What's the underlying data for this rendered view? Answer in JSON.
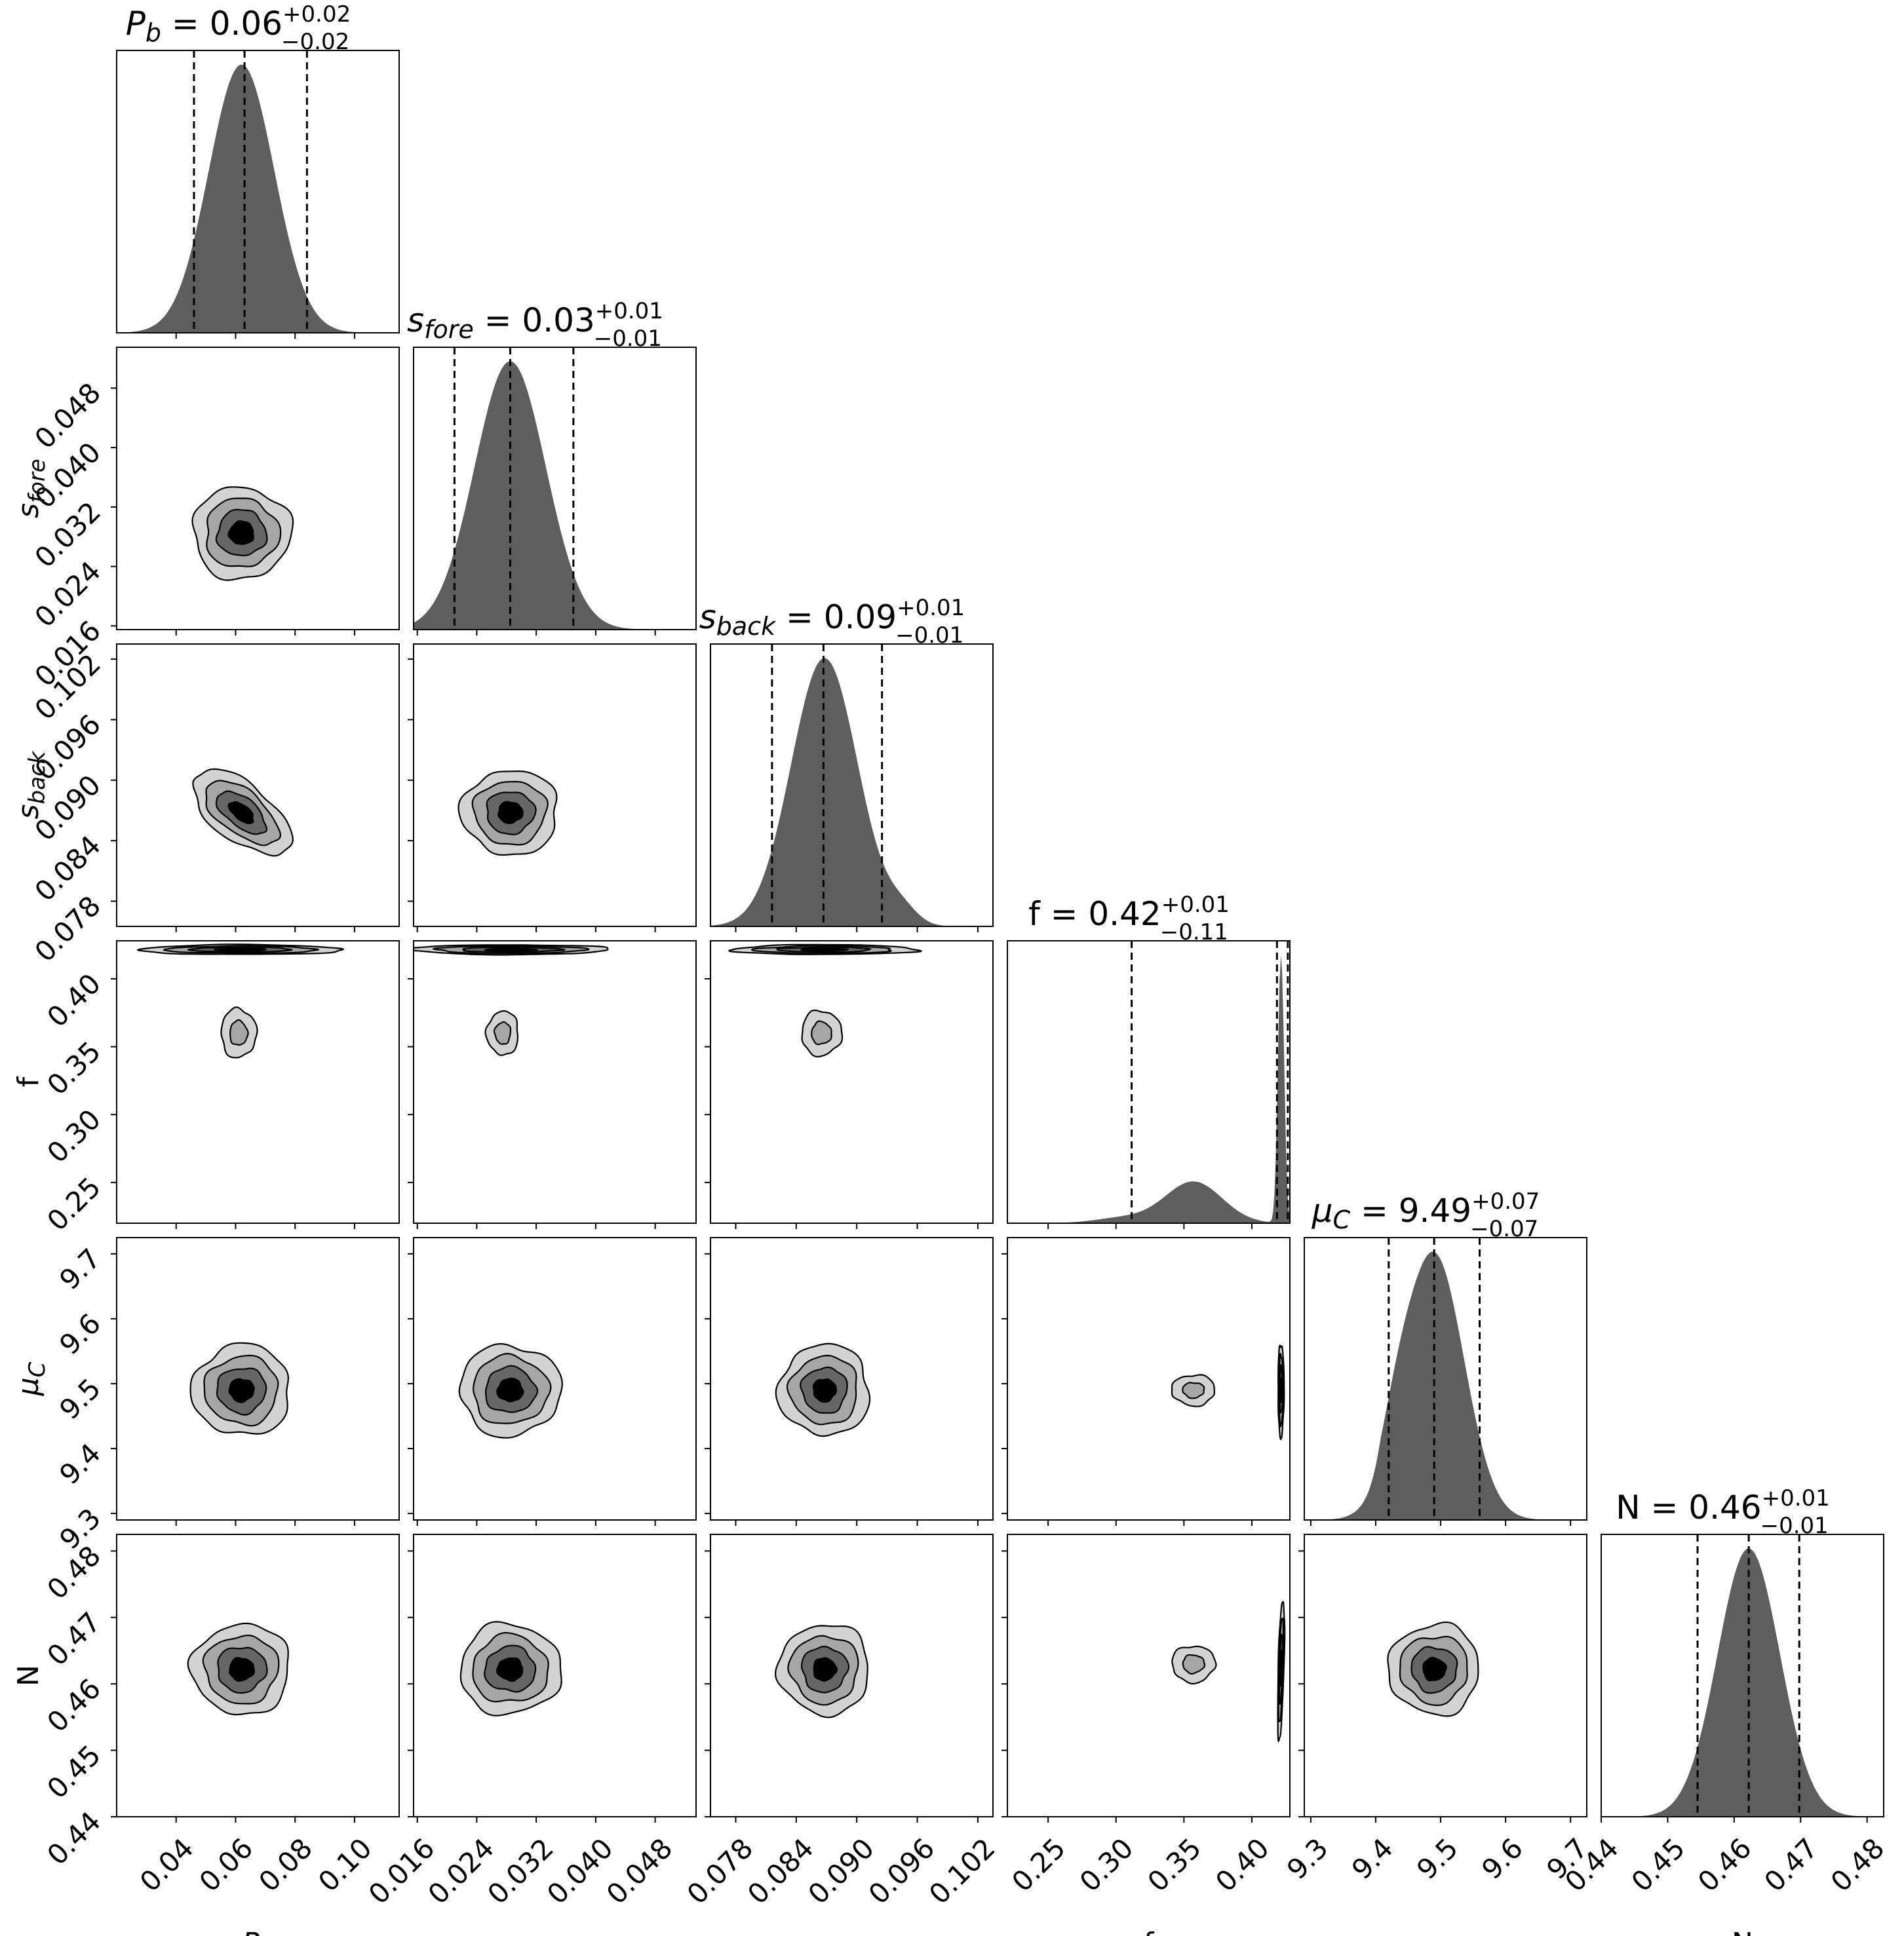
{
  "chart_data": {
    "type": "corner",
    "description": "Corner plot of 1D marginal histograms (diagonal) and 2D credible-region contours (lower triangle)",
    "colors": {
      "histogram": "#5e5e5e",
      "contour_levels": [
        "#d3d3d3",
        "#a6a6a6",
        "#666666",
        "#000000"
      ],
      "lines": "#000000",
      "background": "#ffffff"
    },
    "parameters": [
      {
        "key": "Pb",
        "label": "P_b",
        "label_main": "P",
        "label_sub": "b",
        "range": [
          0.02,
          0.115
        ],
        "ticks": [
          "0.04",
          "0.06",
          "0.08",
          "0.10"
        ],
        "tick_values": [
          0.04,
          0.06,
          0.08,
          0.1
        ],
        "title": {
          "prefix": "= ",
          "value": "0.06",
          "upper": "+0.02",
          "lower": "−0.02"
        },
        "quantiles": [
          0.046,
          0.063,
          0.084
        ],
        "posterior": {
          "mean": 0.062,
          "sd": 0.011
        }
      },
      {
        "key": "sfore",
        "label": "s_fore",
        "label_main": "s",
        "label_sub": "fore",
        "range": [
          0.0155,
          0.0535
        ],
        "ticks": [
          "0.016",
          "0.024",
          "0.032",
          "0.040",
          "0.048"
        ],
        "tick_values": [
          0.016,
          0.024,
          0.032,
          0.04,
          0.048
        ],
        "title": {
          "prefix": "= ",
          "value": "0.03",
          "upper": "+0.01",
          "lower": "−0.01"
        },
        "quantiles": [
          0.021,
          0.0285,
          0.037
        ],
        "posterior": {
          "mean": 0.0285,
          "sd": 0.0048
        }
      },
      {
        "key": "sback",
        "label": "s_back",
        "label_main": "s",
        "label_sub": "back",
        "range": [
          0.0755,
          0.1035
        ],
        "ticks": [
          "0.078",
          "0.084",
          "0.090",
          "0.096",
          "0.102"
        ],
        "tick_values": [
          0.078,
          0.084,
          0.09,
          0.096,
          0.102
        ],
        "title": {
          "prefix": "= ",
          "value": "0.09",
          "upper": "+0.01",
          "lower": "−0.01"
        },
        "quantiles": [
          0.0816,
          0.0867,
          0.0925
        ],
        "posterior": {
          "mean": 0.0868,
          "sd": 0.0033
        }
      },
      {
        "key": "f",
        "label": "f",
        "label_main": "f",
        "label_sub": "",
        "range": [
          0.22,
          0.428
        ],
        "ticks": [
          "0.25",
          "0.30",
          "0.35",
          "0.40"
        ],
        "tick_values": [
          0.25,
          0.3,
          0.35,
          0.4
        ],
        "title": {
          "prefix": "f = ",
          "value": "0.42",
          "upper": "+0.01",
          "lower": "−0.11"
        },
        "quantiles": [
          0.3115,
          0.4185,
          0.4265
        ],
        "posterior": {
          "mode_main": 0.4215,
          "mode_secondary": 0.357
        }
      },
      {
        "key": "muC",
        "label": "μ_C",
        "label_main": "μ",
        "label_sub": "C",
        "range": [
          9.29,
          9.725
        ],
        "ticks": [
          "9.3",
          "9.4",
          "9.5",
          "9.6",
          "9.7"
        ],
        "tick_values": [
          9.3,
          9.4,
          9.5,
          9.6,
          9.7
        ],
        "title": {
          "prefix": "= ",
          "value": "9.49",
          "upper": "+0.07",
          "lower": "−0.07"
        },
        "quantiles": [
          9.42,
          9.49,
          9.56
        ],
        "posterior": {
          "mean": 9.49,
          "sd": 0.046
        }
      },
      {
        "key": "N",
        "label": "N",
        "label_main": "N",
        "label_sub": "",
        "range": [
          0.44,
          0.4825
        ],
        "ticks": [
          "0.44",
          "0.45",
          "0.46",
          "0.47",
          "0.48"
        ],
        "tick_values": [
          0.44,
          0.45,
          0.46,
          0.47,
          0.48
        ],
        "title": {
          "prefix": "N = ",
          "value": "0.46",
          "upper": "+0.01",
          "lower": "−0.01"
        },
        "quantiles": [
          0.4545,
          0.4622,
          0.4698
        ],
        "posterior": {
          "mean": 0.4622,
          "sd": 0.0047
        }
      }
    ],
    "joint_regions": [
      {
        "x": "Pb",
        "y": "sfore",
        "center": [
          0.062,
          0.0285
        ],
        "spread": [
          0.0165,
          0.0062
        ],
        "rho": 0.0
      },
      {
        "x": "Pb",
        "y": "sback",
        "center": [
          0.062,
          0.0868
        ],
        "spread": [
          0.0165,
          0.0042
        ],
        "rho": -0.6
      },
      {
        "x": "sfore",
        "y": "sback",
        "center": [
          0.0285,
          0.0868
        ],
        "spread": [
          0.0065,
          0.0042
        ],
        "rho": 0.0
      },
      {
        "x": "Pb",
        "y": "f",
        "center": [
          0.062,
          0.4215
        ],
        "spread": [
          0.034,
          0.0036
        ],
        "rho": 0.0
      },
      {
        "x": "Pb",
        "y": "f",
        "center": [
          0.061,
          0.36
        ],
        "spread": [
          0.0125,
          0.038
        ],
        "rho": 0.0,
        "secondary": true
      },
      {
        "x": "sfore",
        "y": "f",
        "center": [
          0.0285,
          0.4215
        ],
        "spread": [
          0.0135,
          0.0036
        ],
        "rho": 0.0
      },
      {
        "x": "sfore",
        "y": "f",
        "center": [
          0.0275,
          0.36
        ],
        "spread": [
          0.0045,
          0.034
        ],
        "rho": 0.0,
        "secondary": true
      },
      {
        "x": "sback",
        "y": "f",
        "center": [
          0.0868,
          0.4215
        ],
        "spread": [
          0.0092,
          0.0036
        ],
        "rho": 0.0
      },
      {
        "x": "sback",
        "y": "f",
        "center": [
          0.0865,
          0.36
        ],
        "spread": [
          0.0042,
          0.035
        ],
        "rho": 0.0,
        "secondary": true
      },
      {
        "x": "Pb",
        "y": "muC",
        "center": [
          0.062,
          9.49
        ],
        "spread": [
          0.0165,
          0.07
        ],
        "rho": 0.0
      },
      {
        "x": "sfore",
        "y": "muC",
        "center": [
          0.0285,
          9.49
        ],
        "spread": [
          0.0068,
          0.07
        ],
        "rho": 0.0
      },
      {
        "x": "sback",
        "y": "muC",
        "center": [
          0.0868,
          9.49
        ],
        "spread": [
          0.0045,
          0.07
        ],
        "rho": 0.0
      },
      {
        "x": "f",
        "y": "muC",
        "center": [
          0.4215,
          9.49
        ],
        "spread": [
          0.0022,
          0.072
        ],
        "rho": 0.0
      },
      {
        "x": "f",
        "y": "muC",
        "center": [
          0.357,
          9.49
        ],
        "spread": [
          0.0335,
          0.05
        ],
        "rho": 0.0,
        "secondary": true
      },
      {
        "x": "Pb",
        "y": "N",
        "center": [
          0.062,
          0.4622
        ],
        "spread": [
          0.0165,
          0.0068
        ],
        "rho": 0.0
      },
      {
        "x": "sfore",
        "y": "N",
        "center": [
          0.0285,
          0.4622
        ],
        "spread": [
          0.0068,
          0.0068
        ],
        "rho": 0.0
      },
      {
        "x": "sback",
        "y": "N",
        "center": [
          0.0868,
          0.4622
        ],
        "spread": [
          0.0045,
          0.0068
        ],
        "rho": 0.0
      },
      {
        "x": "f",
        "y": "N",
        "center": [
          0.4215,
          0.4622
        ],
        "spread": [
          0.0025,
          0.0105
        ],
        "rho": 0.55
      },
      {
        "x": "f",
        "y": "N",
        "center": [
          0.357,
          0.463
        ],
        "spread": [
          0.0335,
          0.0058
        ],
        "rho": 0.0,
        "secondary": true
      },
      {
        "x": "muC",
        "y": "N",
        "center": [
          9.49,
          0.4622
        ],
        "spread": [
          0.07,
          0.0068
        ],
        "rho": 0.0
      }
    ],
    "credible_levels": [
      0.5,
      1.0,
      1.5,
      2.0
    ]
  }
}
